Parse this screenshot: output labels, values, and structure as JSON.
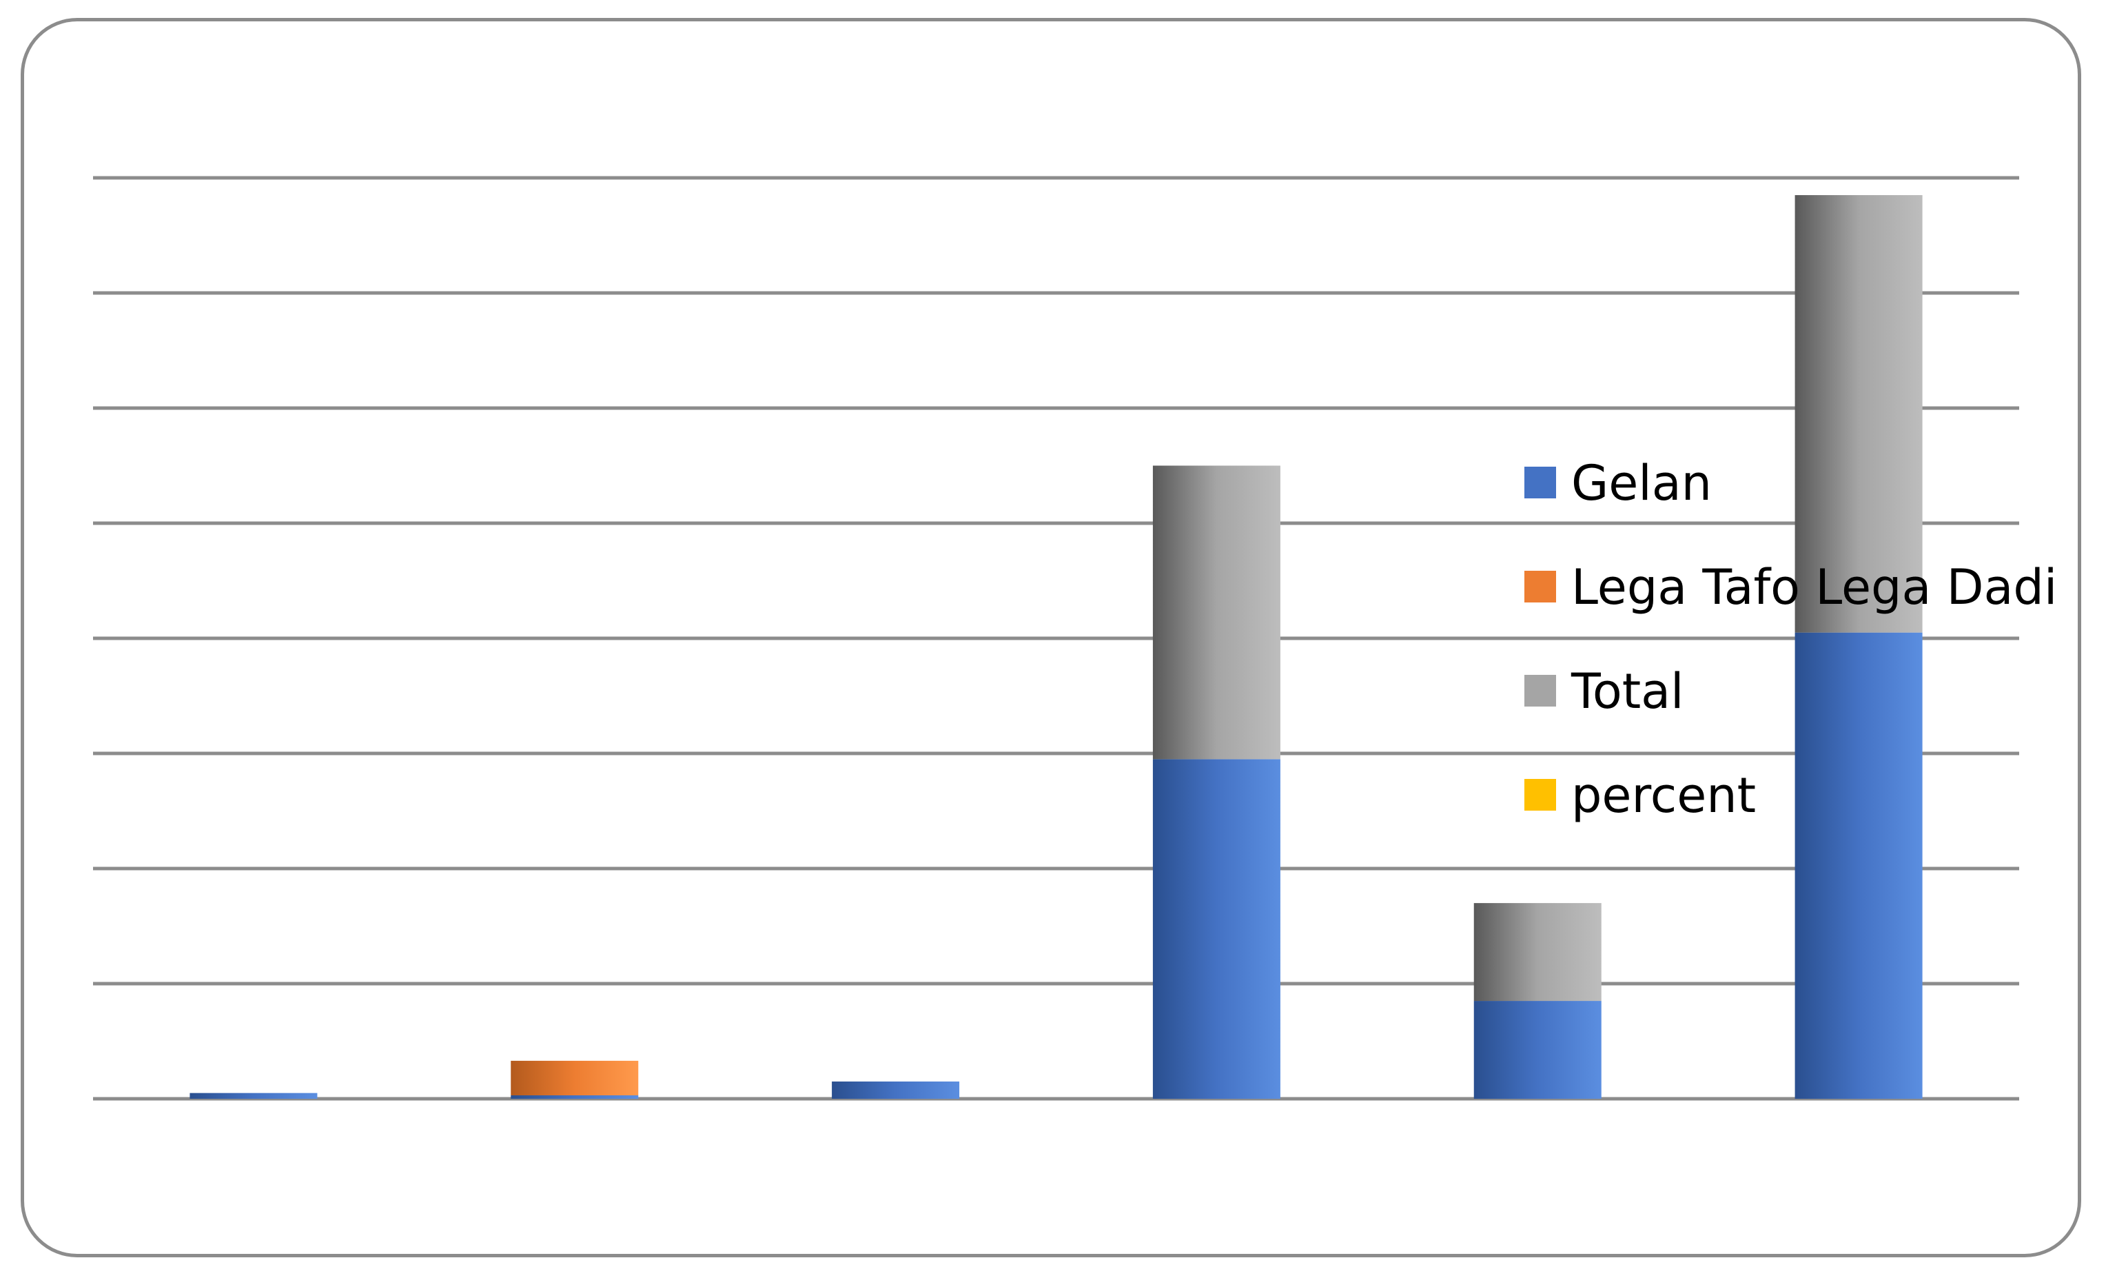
{
  "chart_data": {
    "type": "bar",
    "stacked": true,
    "title": "",
    "xlabel": "",
    "ylabel": "",
    "ylim": [
      0,
      8
    ],
    "grid": true,
    "legend_position": "right",
    "categories": [
      "",
      "",
      "",
      "",
      "",
      ""
    ],
    "series": [
      {
        "name": "Gelan",
        "color": "#4472C4",
        "values": [
          0.05,
          0.03,
          0.15,
          2.95,
          0.85,
          4.05
        ]
      },
      {
        "name": "Lega Tafo Lega Dadi",
        "color": "#ED7D31",
        "values": [
          0,
          0.3,
          0,
          0,
          0,
          0
        ]
      },
      {
        "name": "Total",
        "color": "#A5A5A5",
        "values": [
          0,
          0,
          0,
          2.55,
          0.85,
          3.8
        ]
      },
      {
        "name": "percent",
        "color": "#FFC000",
        "values": [
          0,
          0,
          0,
          0,
          0,
          0
        ]
      }
    ]
  }
}
